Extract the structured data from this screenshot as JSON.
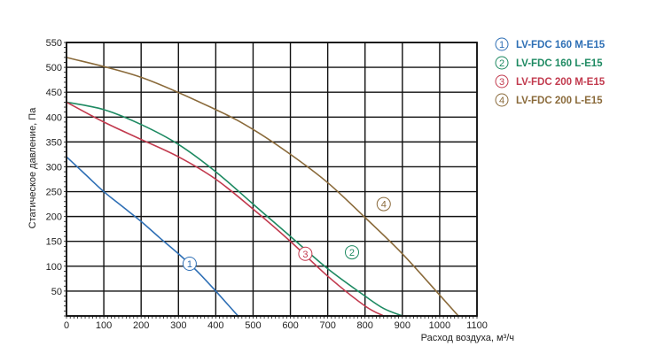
{
  "chart_data": {
    "type": "line",
    "title": "",
    "xlabel": "Расход воздуха, м³/ч",
    "ylabel": "Статическое давление, Па",
    "xlim": [
      0,
      1100
    ],
    "ylim": [
      0,
      550
    ],
    "x_ticks": [
      "0",
      "100",
      "200",
      "300",
      "400",
      "500",
      "600",
      "700",
      "800",
      "900",
      "1000",
      "1100"
    ],
    "y_ticks": [
      "50",
      "100",
      "150",
      "200",
      "250",
      "300",
      "350",
      "400",
      "450",
      "500",
      "550"
    ],
    "grid": true,
    "legend_position": "right",
    "series": [
      {
        "name": "LV-FDC 160 M-E15",
        "marker": "1",
        "color": "#2e6fb5",
        "x": [
          0,
          50,
          100,
          150,
          200,
          250,
          300,
          350,
          400,
          450,
          460
        ],
        "y": [
          320,
          285,
          250,
          220,
          190,
          157,
          125,
          90,
          50,
          8,
          0
        ],
        "marker_at": [
          330,
          105
        ]
      },
      {
        "name": "LV-FDC 160 L-E15",
        "marker": "2",
        "color": "#1e8a62",
        "x": [
          0,
          100,
          200,
          300,
          400,
          500,
          600,
          700,
          800,
          850,
          900
        ],
        "y": [
          430,
          415,
          385,
          345,
          290,
          225,
          160,
          95,
          40,
          15,
          0
        ],
        "marker_at": [
          765,
          128
        ]
      },
      {
        "name": "LV-FDC 200 M-E15",
        "marker": "3",
        "color": "#c23a4e",
        "x": [
          0,
          100,
          200,
          300,
          400,
          500,
          600,
          700,
          800,
          850
        ],
        "y": [
          430,
          390,
          355,
          320,
          275,
          215,
          150,
          80,
          20,
          0
        ],
        "marker_at": [
          640,
          125
        ]
      },
      {
        "name": "LV-FDC 200 L-E15",
        "marker": "4",
        "color": "#8a6a3a",
        "x": [
          0,
          200,
          400,
          500,
          600,
          700,
          800,
          900,
          1000,
          1050
        ],
        "y": [
          520,
          480,
          415,
          375,
          325,
          268,
          198,
          125,
          42,
          0
        ],
        "marker_at": [
          850,
          225
        ]
      }
    ]
  }
}
